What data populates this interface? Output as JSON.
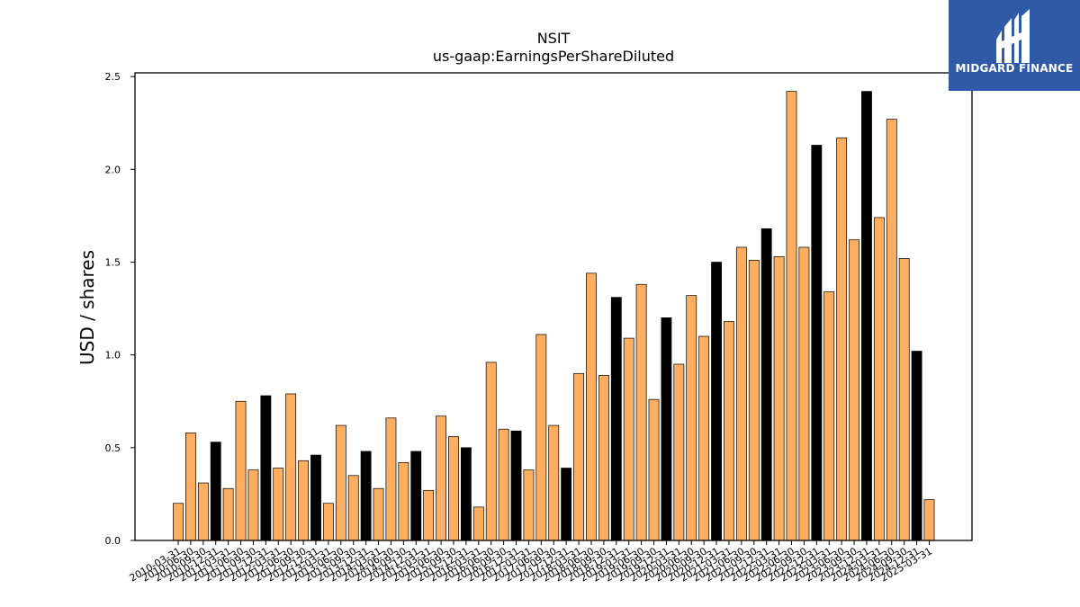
{
  "brand": {
    "name": "MIDGARD FINANCE",
    "color": "#2f5aa8",
    "icon": "midgard-logo-icon"
  },
  "chart_data": {
    "type": "bar",
    "title": "NSIT",
    "subtitle": "us-gaap:EarningsPerShareDiluted",
    "ylabel": "USD / shares",
    "xlabel": "",
    "ylim": [
      0,
      2.52
    ],
    "yticks": [
      "0.0",
      "0.5",
      "1.0",
      "1.5",
      "2.0",
      "2.5"
    ],
    "grid": false,
    "colors": {
      "quarter": "#fdae61",
      "annual": "#000000"
    },
    "categories": [
      "2010-03-31",
      "2010-06-30",
      "2010-09-30",
      "2010-12-31",
      "2011-03-31",
      "2011-06-30",
      "2011-09-30",
      "2011-12-31",
      "2012-03-31",
      "2012-06-30",
      "2012-09-30",
      "2012-12-31",
      "2013-03-31",
      "2013-06-30",
      "2013-09-30",
      "2013-12-31",
      "2014-03-31",
      "2014-06-30",
      "2014-09-30",
      "2014-12-31",
      "2015-03-31",
      "2015-06-30",
      "2015-09-30",
      "2015-12-31",
      "2016-03-31",
      "2016-06-30",
      "2016-09-30",
      "2016-12-31",
      "2017-03-31",
      "2017-06-30",
      "2017-09-30",
      "2017-12-31",
      "2018-03-31",
      "2018-06-30",
      "2018-09-30",
      "2018-12-31",
      "2019-03-31",
      "2019-06-30",
      "2019-09-30",
      "2019-12-31",
      "2020-03-31",
      "2020-06-30",
      "2020-09-30",
      "2020-12-31",
      "2021-03-31",
      "2021-06-30",
      "2021-09-30",
      "2021-12-31",
      "2022-03-31",
      "2022-06-30",
      "2022-09-30",
      "2022-12-31",
      "2023-03-31",
      "2023-06-30",
      "2023-09-30",
      "2023-12-31",
      "2024-03-31",
      "2024-06-30",
      "2024-09-30",
      "2024-12-31",
      "2025-03-31"
    ],
    "values": [
      0.2,
      0.58,
      0.31,
      0.53,
      0.28,
      0.75,
      0.38,
      0.78,
      0.39,
      0.79,
      0.43,
      0.46,
      0.2,
      0.62,
      0.35,
      0.48,
      0.28,
      0.66,
      0.42,
      0.48,
      0.27,
      0.67,
      0.56,
      0.5,
      0.18,
      0.96,
      0.6,
      0.59,
      0.38,
      1.11,
      0.62,
      0.39,
      0.9,
      1.44,
      0.89,
      1.31,
      1.09,
      1.38,
      0.76,
      1.2,
      0.95,
      1.32,
      1.1,
      1.5,
      1.18,
      1.58,
      1.51,
      1.68,
      1.53,
      2.42,
      1.58,
      2.13,
      1.34,
      2.17,
      1.62,
      2.42,
      1.74,
      2.27,
      1.52,
      1.02,
      0.22
    ],
    "is_annual": [
      false,
      false,
      false,
      true,
      false,
      false,
      false,
      true,
      false,
      false,
      false,
      true,
      false,
      false,
      false,
      true,
      false,
      false,
      false,
      true,
      false,
      false,
      false,
      true,
      false,
      false,
      false,
      true,
      false,
      false,
      false,
      true,
      false,
      false,
      false,
      true,
      false,
      false,
      false,
      true,
      false,
      false,
      false,
      true,
      false,
      false,
      false,
      true,
      false,
      false,
      false,
      true,
      false,
      false,
      false,
      true,
      false,
      false,
      false,
      true,
      false
    ]
  }
}
